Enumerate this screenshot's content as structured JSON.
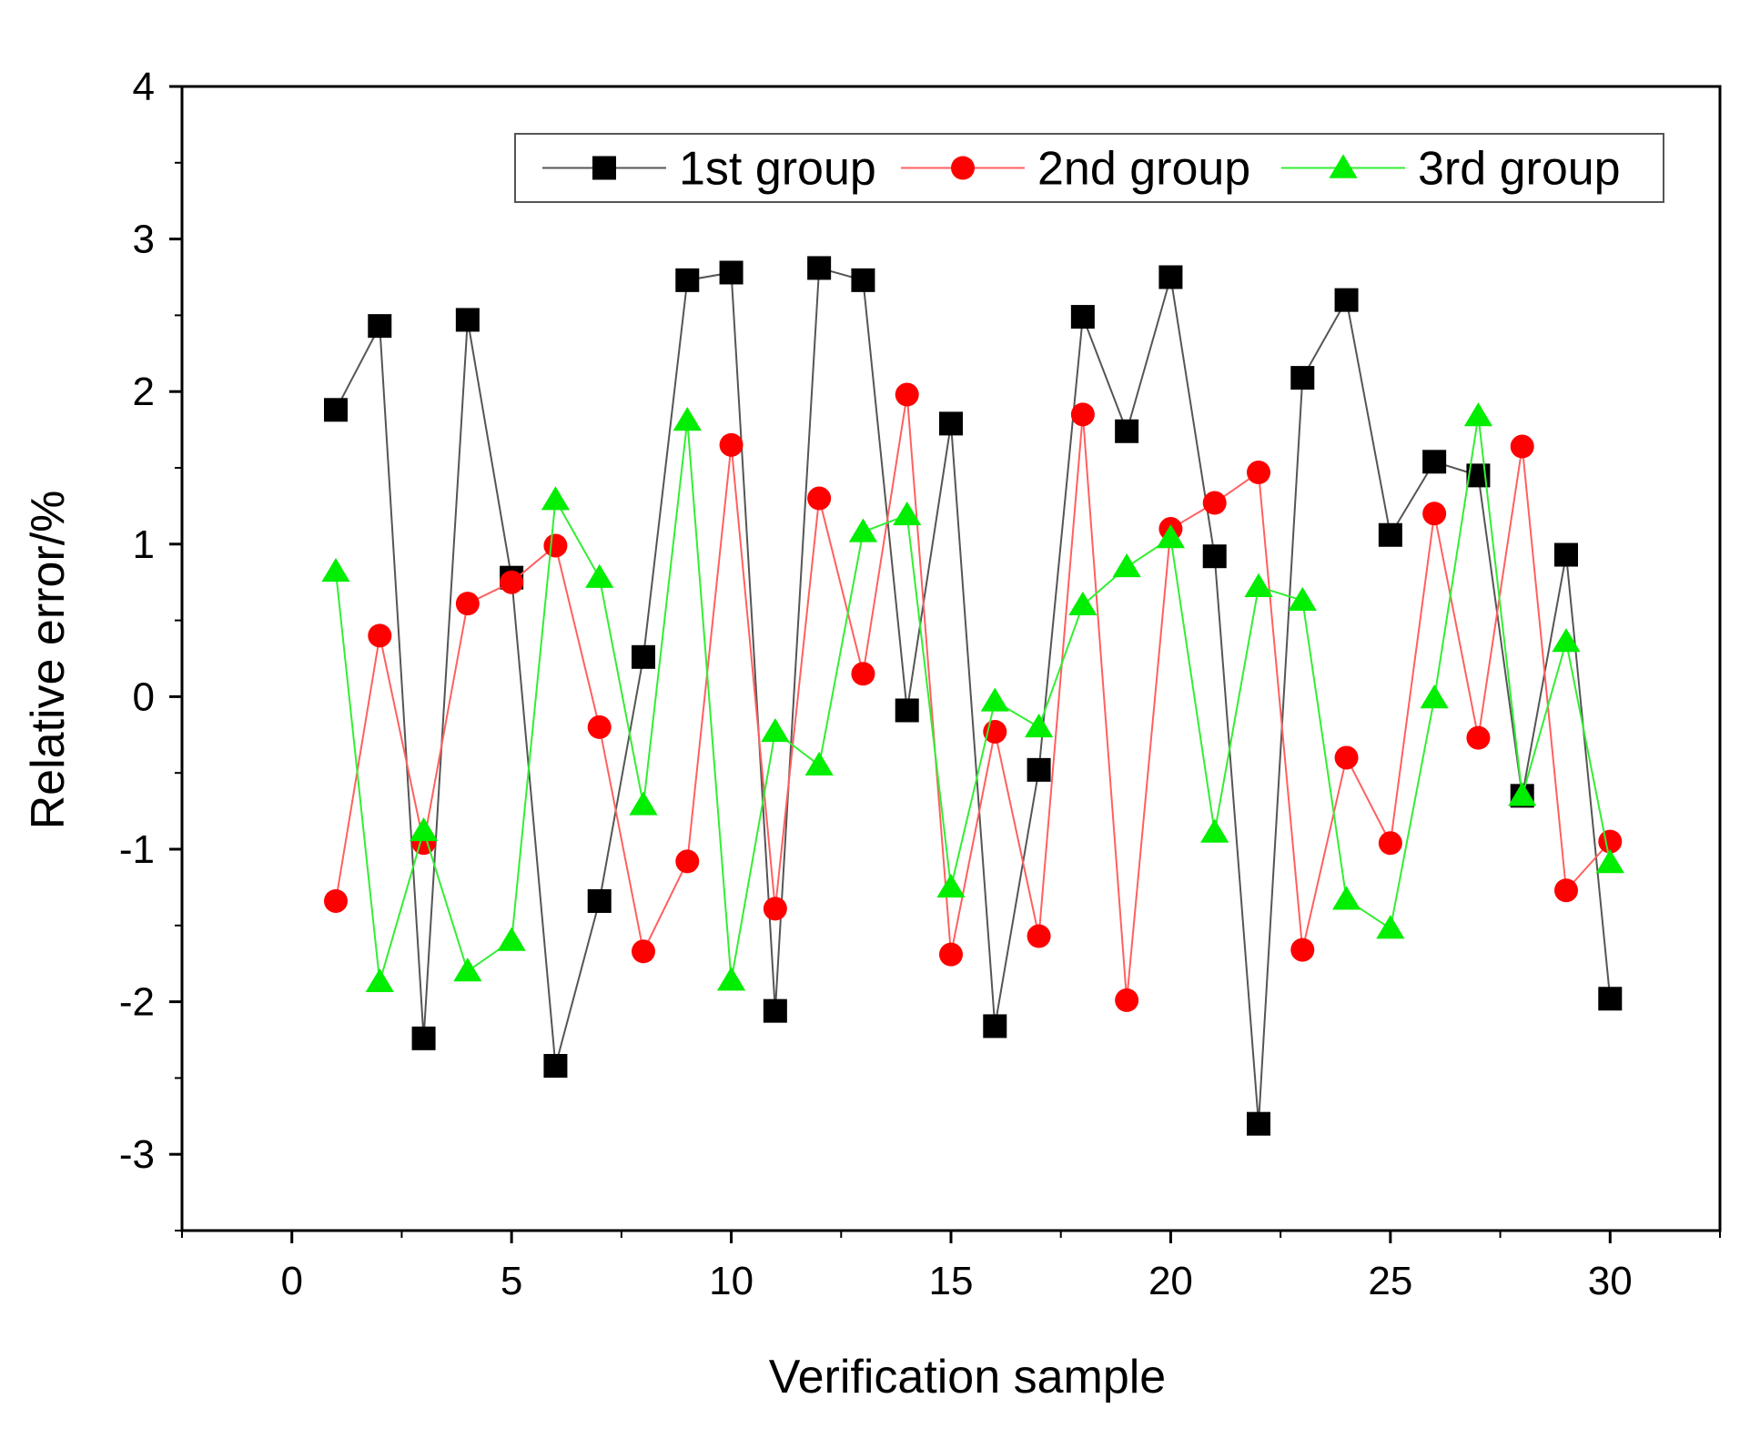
{
  "chart_data": {
    "type": "line",
    "title": "",
    "xlabel": "Verification sample",
    "ylabel": "Relative error/%",
    "xlim": [
      -2.5,
      32.5
    ],
    "ylim": [
      -3.5,
      4
    ],
    "xticks": [
      "0",
      "5",
      "10",
      "15",
      "20",
      "25",
      "30"
    ],
    "yticks": [
      "-3",
      "-2",
      "-1",
      "0",
      "1",
      "2",
      "3",
      "4"
    ],
    "grid": false,
    "legend_position": "top",
    "x": [
      1,
      2,
      3,
      4,
      5,
      6,
      7,
      8,
      9,
      10,
      11,
      12,
      13,
      14,
      15,
      16,
      17,
      18,
      19,
      20,
      21,
      22,
      23,
      24,
      25,
      26,
      27,
      28,
      29,
      30
    ],
    "series": [
      {
        "name": "1st group",
        "color": "#000000",
        "line_color": "#555555",
        "marker": "square",
        "values": [
          1.88,
          2.43,
          -2.24,
          2.47,
          0.78,
          -2.42,
          -1.34,
          0.26,
          2.73,
          2.78,
          -2.06,
          2.81,
          2.73,
          -0.09,
          1.79,
          -2.16,
          -0.48,
          2.49,
          1.74,
          2.75,
          0.92,
          -2.8,
          2.09,
          2.6,
          1.06,
          1.54,
          1.45,
          -0.65,
          0.93,
          -1.98
        ]
      },
      {
        "name": "2nd group",
        "color": "#ff0000",
        "line_color": "#ff6060",
        "marker": "circle",
        "values": [
          -1.34,
          0.4,
          -0.96,
          0.61,
          0.75,
          0.99,
          -0.2,
          -1.67,
          -1.08,
          1.65,
          -1.39,
          1.3,
          0.15,
          1.98,
          -1.69,
          -0.23,
          -1.57,
          1.85,
          -1.99,
          1.1,
          1.27,
          1.47,
          -1.66,
          -0.4,
          -0.96,
          1.2,
          -0.27,
          1.64,
          -1.27,
          -0.95
        ]
      },
      {
        "name": "3rd group",
        "color": "#00ee00",
        "line_color": "#33ee33",
        "marker": "triangle",
        "values": [
          0.82,
          -1.87,
          -0.88,
          -1.8,
          -1.6,
          1.29,
          0.78,
          -0.71,
          1.81,
          -1.86,
          -0.23,
          -0.45,
          1.08,
          1.19,
          -1.25,
          -0.03,
          -0.2,
          0.6,
          0.85,
          1.04,
          -0.89,
          0.72,
          0.63,
          -1.33,
          -1.52,
          -0.01,
          1.84,
          -0.65,
          0.36,
          -1.09
        ]
      }
    ]
  }
}
